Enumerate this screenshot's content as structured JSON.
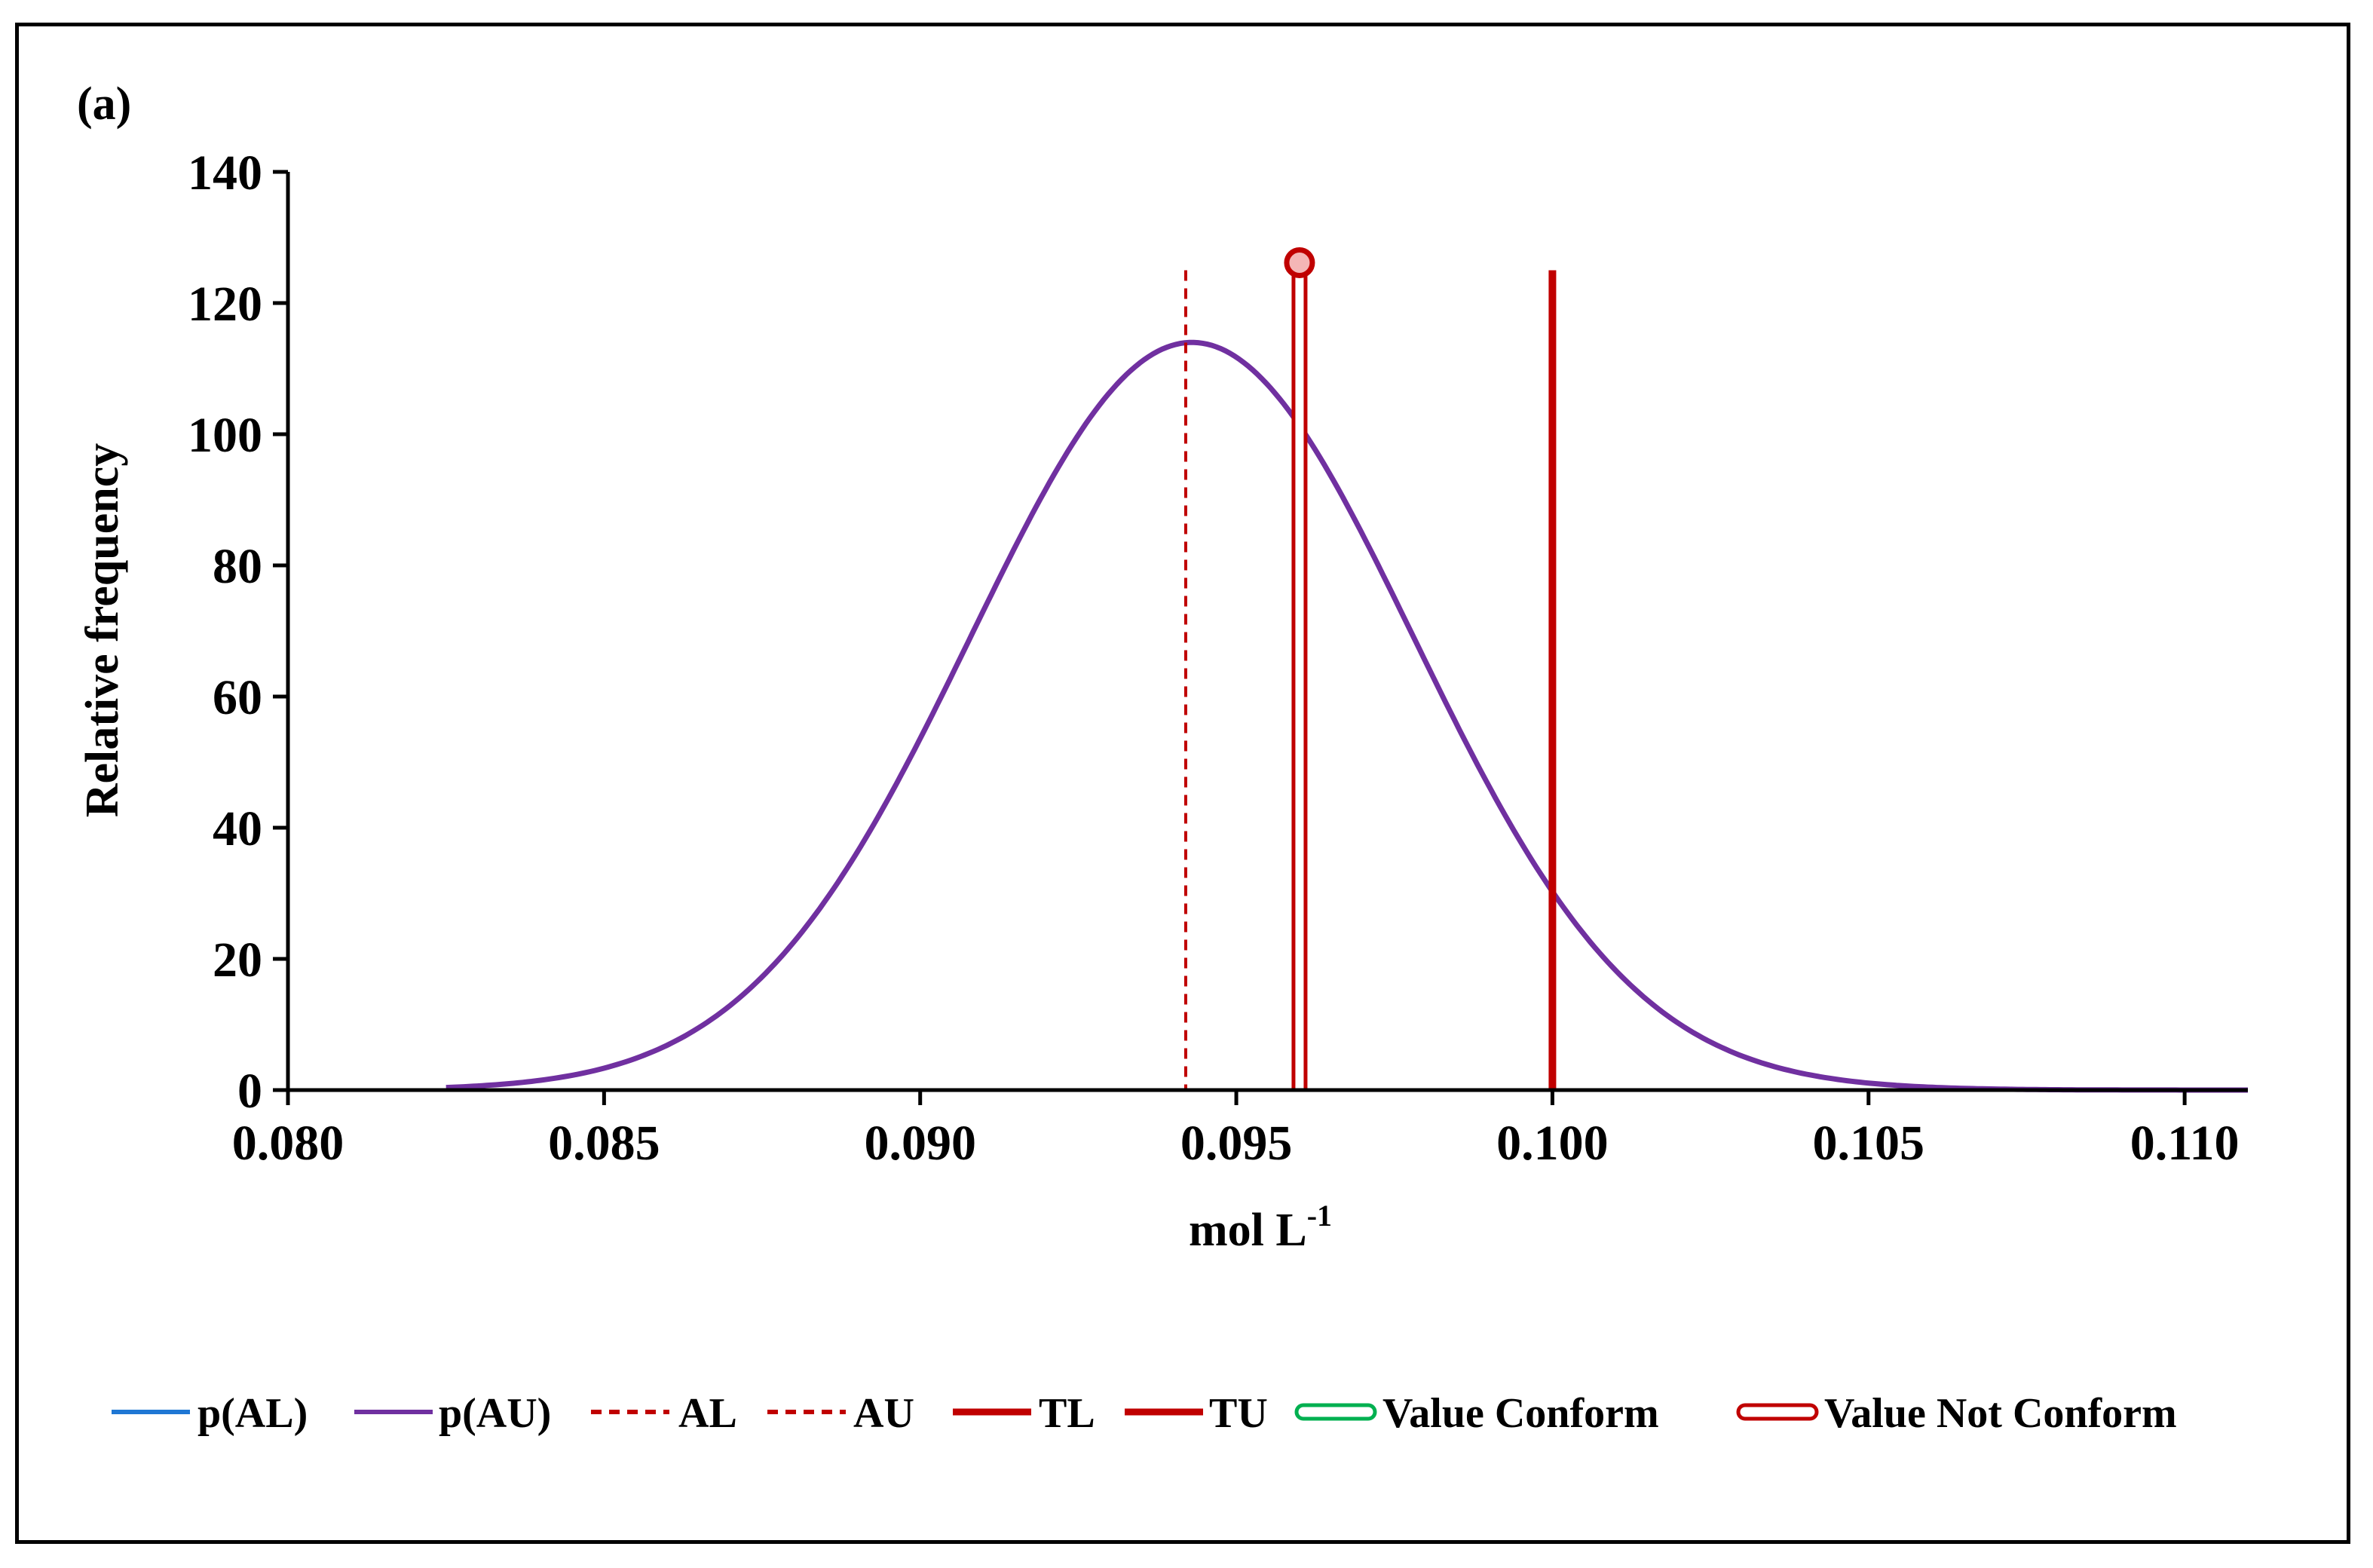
{
  "chart_data": {
    "type": "line",
    "panel_label": "(a)",
    "xlabel": "mol L",
    "xlabel_superscript": "-1",
    "ylabel": "Relative frequency",
    "xlim": [
      0.08,
      0.111
    ],
    "ylim": [
      0,
      140
    ],
    "x_ticks": [
      "0.080",
      "0.085",
      "0.090",
      "0.095",
      "0.100",
      "0.105",
      "0.110"
    ],
    "x_tick_values": [
      0.08,
      0.085,
      0.09,
      0.095,
      0.1,
      0.105,
      0.11
    ],
    "y_ticks": [
      "0",
      "20",
      "40",
      "60",
      "80",
      "100",
      "120",
      "140"
    ],
    "y_tick_values": [
      0,
      20,
      40,
      60,
      80,
      100,
      120,
      140
    ],
    "grid": false,
    "legend_position": "bottom",
    "series": [
      {
        "name": "p(AL)",
        "style": "solid",
        "color": "#1f77d4",
        "visible": false
      },
      {
        "name": "p(AU)",
        "style": "solid",
        "color": "#7030a0",
        "distribution": {
          "kind": "normal",
          "mean": 0.0943,
          "sd": 0.0035,
          "peak": 114,
          "x_start": 0.0825,
          "x_end": 0.111
        }
      },
      {
        "name": "AL",
        "style": "dashed",
        "color": "#c00000",
        "x": 0.0942,
        "y_top": 125
      },
      {
        "name": "AU",
        "style": "dashed",
        "color": "#c00000",
        "visible": false
      },
      {
        "name": "TL",
        "style": "solid-thick",
        "color": "#c00000",
        "visible": false
      },
      {
        "name": "TU",
        "style": "solid-thick",
        "color": "#c00000",
        "x": 0.1,
        "y_top": 125
      },
      {
        "name": "Value Conform",
        "style": "double",
        "color": "#00b050",
        "visible": false
      },
      {
        "name": "Value Not Conform",
        "style": "double",
        "color": "#c00000",
        "x": 0.096,
        "y_top": 125,
        "marker": "circle"
      }
    ]
  }
}
